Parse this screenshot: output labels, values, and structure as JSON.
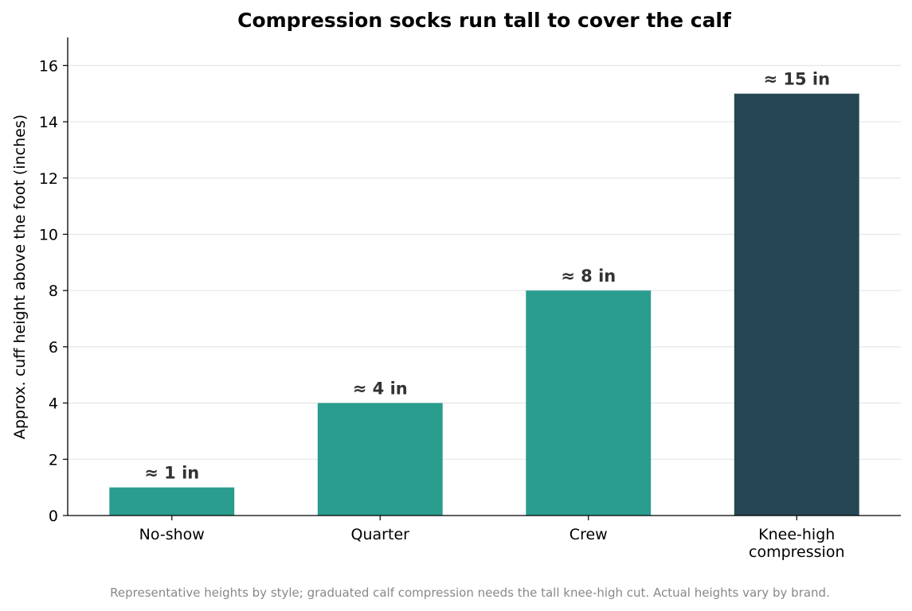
{
  "chart_data": {
    "type": "bar",
    "title": "Compression socks run tall to cover the calf",
    "xlabel": "",
    "ylabel": "Approx. cuff height above the foot (inches)",
    "categories": [
      "No-show",
      "Quarter",
      "Crew",
      "Knee-high\ncompression"
    ],
    "values": [
      1,
      4,
      8,
      15
    ],
    "data_labels": [
      "≈ 1 in",
      "≈ 4 in",
      "≈ 8 in",
      "≈ 15 in"
    ],
    "bar_colors": [
      "#2a9d8f",
      "#2a9d8f",
      "#2a9d8f",
      "#264653"
    ],
    "ylim": [
      0,
      17
    ],
    "yticks": [
      0,
      2,
      4,
      6,
      8,
      10,
      12,
      14,
      16
    ],
    "grid": "horizontal",
    "caption": "Representative heights by style; graduated calf compression needs the tall knee-high cut. Actual heights vary by brand."
  }
}
